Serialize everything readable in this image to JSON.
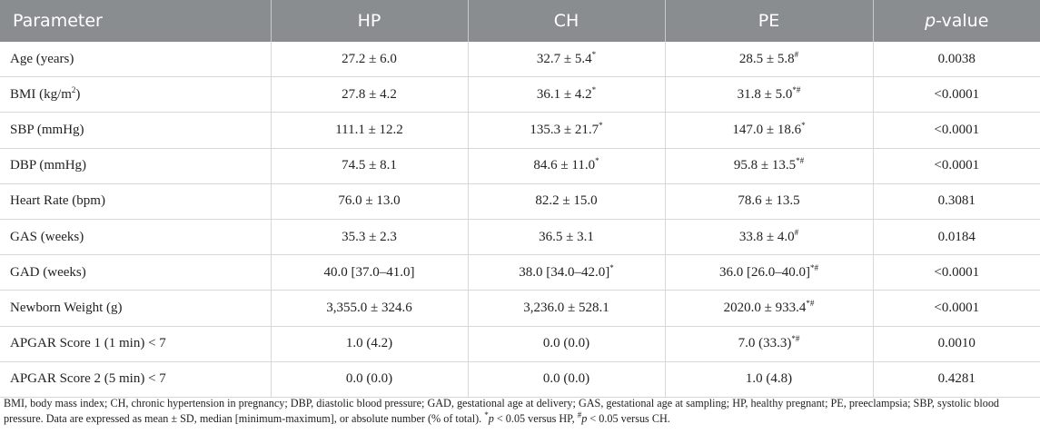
{
  "columns": [
    "Parameter",
    "HP",
    "CH",
    "PE",
    "-value"
  ],
  "p_letter": "p",
  "rows": [
    {
      "param": "Age (years)",
      "hp": "27.2 ± 6.0",
      "ch": "32.7 ± 5.4",
      "ch_sup": "*",
      "pe": "28.5 ± 5.8",
      "pe_sup": "#",
      "p": "0.0038"
    },
    {
      "param": "BMI (kg/m",
      "param_sup": "2",
      "param_end": ")",
      "hp": "27.8 ± 4.2",
      "ch": "36.1 ± 4.2",
      "ch_sup": "*",
      "pe": "31.8 ± 5.0",
      "pe_sup": "*#",
      "p": "<0.0001"
    },
    {
      "param": "SBP (mmHg)",
      "hp": "111.1 ± 12.2",
      "ch": "135.3 ± 21.7",
      "ch_sup": "*",
      "pe": "147.0 ± 18.6",
      "pe_sup": "*",
      "p": "<0.0001"
    },
    {
      "param": "DBP (mmHg)",
      "hp": "74.5 ± 8.1",
      "ch": "84.6 ± 11.0",
      "ch_sup": "*",
      "pe": "95.8 ± 13.5",
      "pe_sup": "*#",
      "p": "<0.0001"
    },
    {
      "param": "Heart Rate (bpm)",
      "hp": "76.0 ± 13.0",
      "ch": "82.2 ± 15.0",
      "ch_sup": "",
      "pe": "78.6 ± 13.5",
      "pe_sup": "",
      "p": "0.3081"
    },
    {
      "param": "GAS (weeks)",
      "hp": "35.3 ± 2.3",
      "ch": "36.5 ± 3.1",
      "ch_sup": "",
      "pe": "33.8 ± 4.0",
      "pe_sup": "#",
      "p": "0.0184"
    },
    {
      "param": "GAD (weeks)",
      "hp": "40.0 [37.0–41.0]",
      "ch": "38.0 [34.0–42.0]",
      "ch_sup": "*",
      "pe": "36.0 [26.0–40.0]",
      "pe_sup": "*#",
      "p": "<0.0001"
    },
    {
      "param": "Newborn Weight (g)",
      "hp": "3,355.0 ± 324.6",
      "ch": "3,236.0 ± 528.1",
      "ch_sup": "",
      "pe": "2020.0 ± 933.4",
      "pe_sup": "*#",
      "p": "<0.0001"
    },
    {
      "param": "APGAR Score 1 (1 min) < 7",
      "hp": "1.0 (4.2)",
      "ch": "0.0 (0.0)",
      "ch_sup": "",
      "pe": "7.0 (33.3)",
      "pe_sup": "*#",
      "p": "0.0010"
    },
    {
      "param": "APGAR Score 2 (5 min) < 7",
      "hp": "0.0 (0.0)",
      "ch": "0.0 (0.0)",
      "ch_sup": "",
      "pe": "1.0 (4.8)",
      "pe_sup": "",
      "p": "0.4281"
    }
  ],
  "footnote": {
    "main": "BMI, body mass index; CH, chronic hypertension in pregnancy; DBP, diastolic blood pressure; GAD, gestational age at delivery; GAS, gestational age at sampling; HP, healthy pregnant; PE, preeclampsia; SBP, systolic blood pressure. Data are expressed as mean ± SD, median [minimum-maximum], or absolute number (% of total). ",
    "star": "*",
    "p1": "p",
    "mid": " < 0.05 versus HP, ",
    "hash": "#",
    "p2": "p",
    "end": " < 0.05 versus CH."
  }
}
